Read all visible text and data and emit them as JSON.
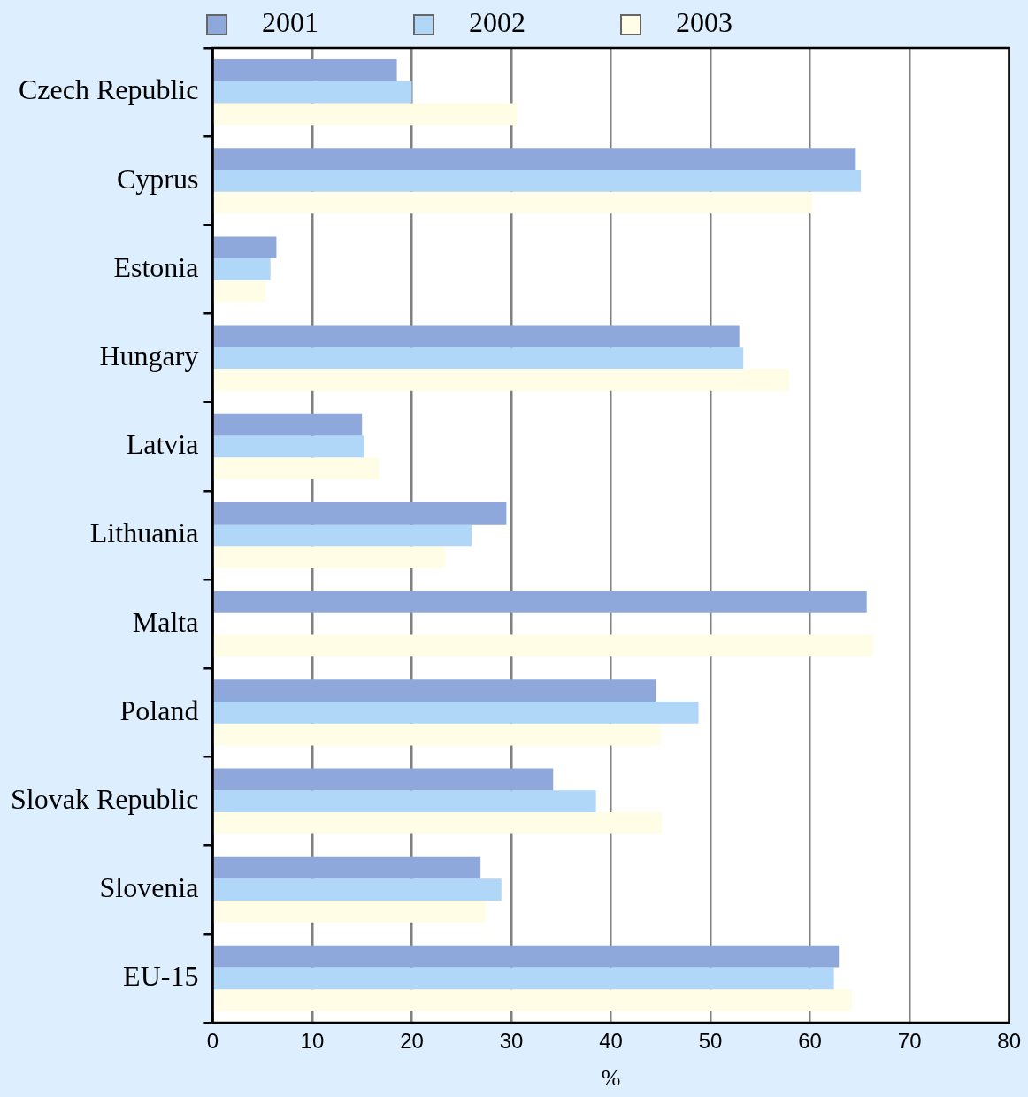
{
  "chart_data": {
    "type": "bar",
    "orientation": "horizontal",
    "xlabel": "%",
    "categories": [
      "Czech Republic",
      "Cyprus",
      "Estonia",
      "Hungary",
      "Latvia",
      "Lithuania",
      "Malta",
      "Poland",
      "Slovak Republic",
      "Slovenia",
      "EU-15"
    ],
    "series": [
      {
        "name": "2001",
        "color": "#8fa8dc",
        "values": [
          18.5,
          64.6,
          6.4,
          52.9,
          15.0,
          29.5,
          65.7,
          44.5,
          34.2,
          26.9,
          62.9
        ]
      },
      {
        "name": "2002",
        "color": "#b0d6f8",
        "values": [
          20.0,
          65.1,
          5.8,
          53.3,
          15.2,
          26.0,
          null,
          48.8,
          38.5,
          29.0,
          62.4
        ]
      },
      {
        "name": "2003",
        "color": "#fffde6",
        "values": [
          30.6,
          60.2,
          5.3,
          57.9,
          16.7,
          23.3,
          66.3,
          45.0,
          45.1,
          27.4,
          64.2
        ]
      }
    ],
    "xlim": [
      0,
      80
    ],
    "xticks": [
      0,
      10,
      20,
      30,
      40,
      50,
      60,
      70,
      80
    ],
    "grid": "x",
    "legend": "top"
  }
}
